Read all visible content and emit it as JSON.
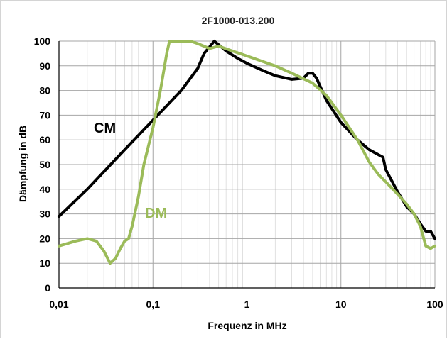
{
  "chart_data": {
    "type": "line",
    "title": "2F1000-013.200",
    "xlabel": "Frequenz in MHz",
    "ylabel": "Dämpfung in dB",
    "xscale": "log",
    "xlim": [
      0.01,
      100
    ],
    "ylim": [
      0,
      100
    ],
    "x_ticks": [
      "0,01",
      "0,1",
      "1",
      "10",
      "100"
    ],
    "y_ticks": [
      "0",
      "10",
      "20",
      "30",
      "40",
      "50",
      "60",
      "70",
      "80",
      "90",
      "100"
    ],
    "grid": "major and minor (log x), major y",
    "legend": "none",
    "series": [
      {
        "name": "CM",
        "color": "#000000",
        "points": [
          [
            0.01,
            29
          ],
          [
            0.02,
            40
          ],
          [
            0.05,
            56
          ],
          [
            0.1,
            68
          ],
          [
            0.2,
            80
          ],
          [
            0.3,
            89
          ],
          [
            0.35,
            95
          ],
          [
            0.45,
            100
          ],
          [
            0.6,
            96
          ],
          [
            0.8,
            93
          ],
          [
            1,
            91
          ],
          [
            1.5,
            88
          ],
          [
            2,
            86
          ],
          [
            3,
            84.5
          ],
          [
            4,
            85
          ],
          [
            4.5,
            87
          ],
          [
            5,
            87
          ],
          [
            5.5,
            85
          ],
          [
            7,
            76
          ],
          [
            10,
            67
          ],
          [
            15,
            60
          ],
          [
            20,
            56
          ],
          [
            25,
            54
          ],
          [
            28,
            53
          ],
          [
            30,
            48
          ],
          [
            40,
            39
          ],
          [
            50,
            33
          ],
          [
            60,
            30
          ],
          [
            70,
            26
          ],
          [
            80,
            23
          ],
          [
            90,
            23
          ],
          [
            100,
            20
          ]
        ]
      },
      {
        "name": "DM",
        "color": "#9bbb59",
        "points": [
          [
            0.01,
            17
          ],
          [
            0.015,
            19
          ],
          [
            0.02,
            20
          ],
          [
            0.025,
            19
          ],
          [
            0.03,
            15
          ],
          [
            0.035,
            10
          ],
          [
            0.04,
            12
          ],
          [
            0.045,
            16
          ],
          [
            0.05,
            19
          ],
          [
            0.055,
            20
          ],
          [
            0.06,
            25
          ],
          [
            0.07,
            37
          ],
          [
            0.08,
            50
          ],
          [
            0.1,
            65
          ],
          [
            0.12,
            80
          ],
          [
            0.14,
            95
          ],
          [
            0.15,
            100
          ],
          [
            0.2,
            100
          ],
          [
            0.25,
            100
          ],
          [
            0.3,
            99
          ],
          [
            0.4,
            97
          ],
          [
            0.5,
            98
          ],
          [
            0.7,
            96
          ],
          [
            1,
            94
          ],
          [
            2,
            90
          ],
          [
            3,
            87
          ],
          [
            5,
            83
          ],
          [
            7,
            78
          ],
          [
            10,
            70
          ],
          [
            15,
            60
          ],
          [
            20,
            51
          ],
          [
            25,
            46
          ],
          [
            30,
            43
          ],
          [
            40,
            38
          ],
          [
            50,
            34
          ],
          [
            60,
            30
          ],
          [
            70,
            25
          ],
          [
            80,
            17
          ],
          [
            90,
            16
          ],
          [
            100,
            17
          ]
        ]
      }
    ]
  }
}
